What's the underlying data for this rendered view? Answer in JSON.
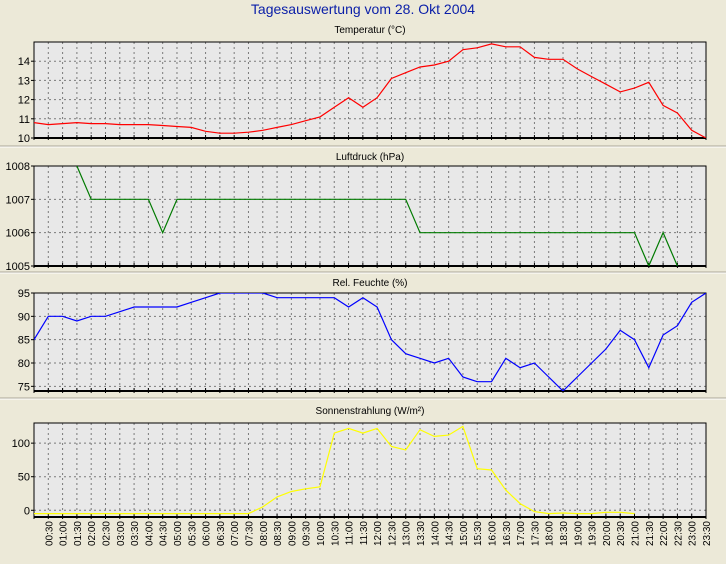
{
  "page": {
    "title": "Tagesauswertung vom 28. Okt 2004"
  },
  "chart_data": [
    {
      "type": "line",
      "title": "Temperatur (°C)",
      "color": "#ff0000",
      "ylim": [
        10,
        15
      ],
      "yticks": [
        10,
        11,
        12,
        13,
        14
      ],
      "xlim": [
        0,
        47
      ],
      "series": [
        {
          "x": [
            0,
            1,
            2,
            3,
            4,
            5,
            6,
            7,
            8,
            9,
            10,
            11,
            12,
            13,
            14,
            15,
            16,
            17,
            18,
            19,
            20,
            21,
            22,
            23,
            24,
            25,
            26,
            27,
            28,
            29,
            30,
            31,
            32,
            33,
            34,
            35,
            36,
            37,
            38,
            39,
            40,
            41,
            42,
            43,
            44,
            45,
            46,
            47
          ],
          "values": [
            10.8,
            10.7,
            10.75,
            10.8,
            10.75,
            10.75,
            10.7,
            10.7,
            10.7,
            10.65,
            10.6,
            10.55,
            10.35,
            10.25,
            10.25,
            10.3,
            10.4,
            10.55,
            10.7,
            10.9,
            11.1,
            11.6,
            12.1,
            11.6,
            12.1,
            13.1,
            13.4,
            13.7,
            13.8,
            14.0,
            14.6,
            14.7,
            14.9,
            14.75,
            14.75,
            14.2,
            14.1,
            14.1,
            13.6,
            13.2,
            12.8,
            12.4,
            12.6,
            12.9,
            11.7,
            11.3,
            10.4,
            10.0
          ]
        }
      ]
    },
    {
      "type": "line",
      "title": "Luftdruck (hPa)",
      "color": "#007a00",
      "ylim": [
        1005,
        1008
      ],
      "yticks": [
        1005,
        1006,
        1007,
        1008
      ],
      "xlim": [
        0,
        47
      ],
      "series": [
        {
          "x": [
            3,
            4,
            8,
            9,
            10,
            26,
            27,
            42,
            43,
            44,
            45
          ],
          "values": [
            1008,
            1007,
            1007,
            1006,
            1007,
            1007,
            1006,
            1006,
            1005,
            1006,
            1005
          ]
        }
      ]
    },
    {
      "type": "line",
      "title": "Rel. Feuchte (%)",
      "color": "#0000ff",
      "ylim": [
        74,
        95
      ],
      "yticks": [
        75,
        80,
        85,
        90,
        95
      ],
      "xlim": [
        0,
        47
      ],
      "series": [
        {
          "x": [
            0,
            1,
            2,
            3,
            4,
            5,
            6,
            7,
            8,
            9,
            10,
            11,
            12,
            13,
            14,
            15,
            16,
            17,
            18,
            19,
            20,
            21,
            22,
            23,
            24,
            25,
            26,
            27,
            28,
            29,
            30,
            31,
            32,
            33,
            34,
            35,
            36,
            37,
            38,
            39,
            40,
            41,
            42,
            43,
            44,
            45,
            46,
            47
          ],
          "values": [
            85,
            90,
            90,
            89,
            90,
            90,
            91,
            92,
            92,
            92,
            92,
            93,
            94,
            95,
            95,
            95,
            95,
            94,
            94,
            94,
            94,
            94,
            92,
            94,
            92,
            85,
            82,
            81,
            80,
            81,
            77,
            76,
            76,
            81,
            79,
            80,
            77,
            74,
            77,
            80,
            83,
            87,
            85,
            79,
            86,
            88,
            93,
            95
          ]
        }
      ]
    },
    {
      "type": "line",
      "title": "Sonnenstrahlung (W/m²)",
      "color": "#ffff00",
      "ylim": [
        -10,
        130
      ],
      "yticks": [
        0,
        50,
        100
      ],
      "xlim": [
        0,
        47
      ],
      "series": [
        {
          "x": [
            0,
            1,
            2,
            3,
            4,
            5,
            6,
            7,
            8,
            9,
            10,
            11,
            12,
            13,
            14,
            15,
            16,
            17,
            18,
            19,
            20,
            21,
            22,
            23,
            24,
            25,
            26,
            27,
            28,
            29,
            30,
            31,
            32,
            33,
            34,
            35,
            36,
            37,
            38,
            39,
            40,
            41,
            42
          ],
          "values": [
            -5,
            -5,
            -5,
            -5,
            -5,
            -5,
            -5,
            -5,
            -5,
            -5,
            -5,
            -5,
            -5,
            -5,
            -5,
            -5,
            5,
            20,
            28,
            32,
            35,
            115,
            122,
            115,
            122,
            95,
            90,
            120,
            110,
            112,
            125,
            62,
            60,
            30,
            10,
            -2,
            -5,
            -4,
            -5,
            -5,
            -3,
            -3,
            -5
          ]
        }
      ]
    }
  ],
  "x_axis": {
    "tick_labels": [
      "00:30",
      "01:00",
      "01:30",
      "02:00",
      "02:30",
      "03:00",
      "03:30",
      "04:00",
      "04:30",
      "05:00",
      "05:30",
      "06:00",
      "06:30",
      "07:00",
      "07:30",
      "08:00",
      "08:30",
      "09:00",
      "09:30",
      "10:00",
      "10:30",
      "11:00",
      "11:30",
      "12:00",
      "12:30",
      "13:00",
      "13:30",
      "14:00",
      "14:30",
      "15:00",
      "15:30",
      "16:00",
      "16:30",
      "17:00",
      "17:30",
      "18:00",
      "18:30",
      "19:00",
      "19:30",
      "20:00",
      "20:30",
      "21:00",
      "21:30",
      "22:00",
      "22:30",
      "23:00",
      "23:30"
    ]
  }
}
